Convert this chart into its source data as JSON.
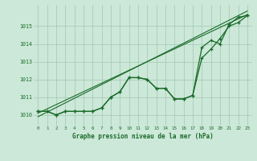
{
  "title": "Graphe pression niveau de la mer (hPa)",
  "background_color": "#cce8d8",
  "grid_color": "#a0c8b0",
  "line_color": "#1a6b2a",
  "xlim": [
    -0.5,
    23.5
  ],
  "ylim": [
    1009.4,
    1016.2
  ],
  "yticks": [
    1010,
    1011,
    1012,
    1013,
    1014,
    1015
  ],
  "xticks": [
    0,
    1,
    2,
    3,
    4,
    5,
    6,
    7,
    8,
    9,
    10,
    11,
    12,
    13,
    14,
    15,
    16,
    17,
    18,
    19,
    20,
    21,
    22,
    23
  ],
  "series1": [
    1010.2,
    1010.2,
    1010.0,
    1010.2,
    1010.2,
    1010.2,
    1010.2,
    1010.4,
    1011.0,
    1011.3,
    1012.1,
    1012.1,
    1012.0,
    1011.5,
    1011.5,
    1010.9,
    1010.9,
    1011.1,
    1013.8,
    1014.2,
    1014.0,
    1015.1,
    1015.5,
    1015.6
  ],
  "series2": [
    1010.2,
    1010.2,
    1010.0,
    1010.2,
    1010.2,
    1010.2,
    1010.2,
    1010.4,
    1011.0,
    1011.3,
    1012.1,
    1012.1,
    1012.0,
    1011.5,
    1011.5,
    1010.9,
    1010.9,
    1011.1,
    1013.2,
    1013.7,
    1014.3,
    1015.0,
    1015.2,
    1015.6
  ],
  "series3_x": [
    0,
    23
  ],
  "series3_y": [
    1010.1,
    1015.65
  ],
  "series4_x": [
    0,
    23
  ],
  "series4_y": [
    1009.9,
    1015.85
  ]
}
